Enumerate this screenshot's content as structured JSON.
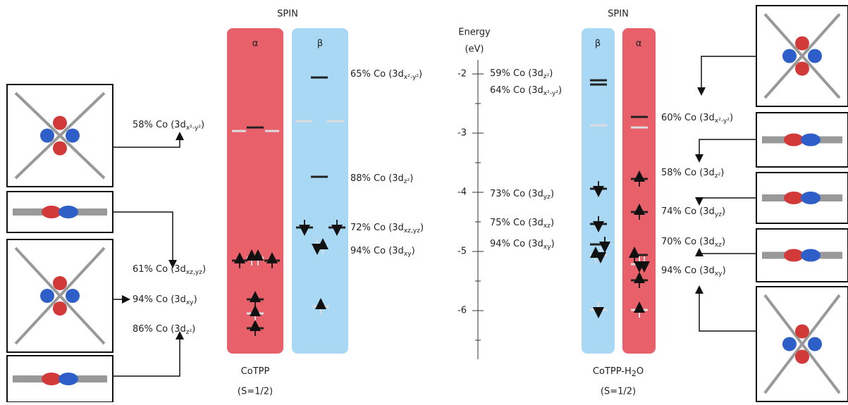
{
  "left": {
    "spin": "SPIN",
    "columns": [
      "α",
      "β"
    ],
    "name": {
      "text": "CoTPP"
    },
    "spin_state": "(S=1/2)",
    "labels": [
      {
        "text": "65% Co (3d",
        "sub": "x²-y²",
        "end": ")"
      },
      {
        "text": "88% Co (3d",
        "sub": "z²",
        "end": ")"
      },
      {
        "text": "72% Co (3d",
        "sub": "xz,yz",
        "end": ")"
      },
      {
        "text": "94% Co (3d",
        "sub": "xy",
        "end": ")"
      },
      {
        "text": "58% Co (3d",
        "sub": "x²-y²",
        "end": ")"
      },
      {
        "text": "61% Co (3d",
        "sub": "xz,yz",
        "end": ")"
      },
      {
        "text": "94% Co (3d",
        "sub": "xy",
        "end": ")"
      },
      {
        "text": "86% Co (3d",
        "sub": "z²",
        "end": ")"
      }
    ]
  },
  "right": {
    "spin": "SPIN",
    "columns": [
      "β",
      "α"
    ],
    "name": {
      "text": "CoTPP-H",
      "sub": "2",
      "end": "O"
    },
    "spin_state": "(S=1/2)",
    "labels": [
      {
        "text": "59% Co (3d",
        "sub": "z²",
        "end": ")"
      },
      {
        "text": "64% Co (3d",
        "sub": "x²-y²",
        "end": ")"
      },
      {
        "text": "73% Co (3d",
        "sub": "yz",
        "end": ")"
      },
      {
        "text": "75% Co (3d",
        "sub": "xz",
        "end": ")"
      },
      {
        "text": "94% Co (3d",
        "sub": "xy",
        "end": ")"
      },
      {
        "text": "60% Co (3d",
        "sub": "x²-y²",
        "end": ")"
      },
      {
        "text": "58% Co (3d",
        "sub": "z²",
        "end": ")"
      },
      {
        "text": "74% Co (3d",
        "sub": "yz",
        "end": ")"
      },
      {
        "text": "70% Co (3d",
        "sub": "xz",
        "end": ")"
      },
      {
        "text": "94% Co (3d",
        "sub": "xy",
        "end": ")"
      }
    ]
  },
  "energy_axis": {
    "title": [
      "Energy",
      "(eV)"
    ],
    "ticks": [
      -2,
      -3,
      -4,
      -5,
      -6
    ]
  }
}
